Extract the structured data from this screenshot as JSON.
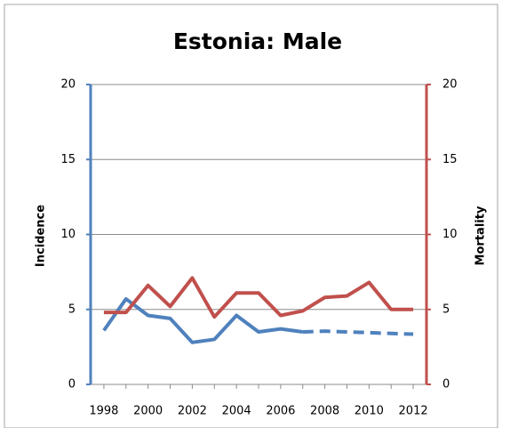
{
  "chart_data": {
    "type": "line",
    "title": "Estonia: Male",
    "y_label": "Incidence",
    "y2_label": "Mortality",
    "x": [
      1998,
      1999,
      2000,
      2001,
      2002,
      2003,
      2004,
      2005,
      2006,
      2007,
      2008,
      2009,
      2010,
      2011,
      2012
    ],
    "xlim": [
      1997.4,
      2012.6
    ],
    "xticks": [
      1998,
      2000,
      2002,
      2004,
      2006,
      2008,
      2010,
      2012
    ],
    "ylim": [
      0,
      20
    ],
    "yticks": [
      0,
      5,
      10,
      15,
      20
    ],
    "y2lim": [
      0,
      20
    ],
    "y2ticks": [
      0,
      5,
      10,
      15,
      20
    ],
    "grid": true,
    "series": [
      {
        "color": "#4f81bd",
        "axis": "y",
        "dashed": false,
        "values": [
          3.6,
          5.7,
          4.6,
          4.4,
          2.8,
          3.0,
          4.6,
          3.5,
          3.7,
          3.5,
          null,
          null,
          null,
          null,
          null
        ]
      },
      {
        "color": "#4f81bd",
        "axis": "y",
        "dashed": true,
        "values": [
          null,
          null,
          null,
          null,
          null,
          null,
          null,
          null,
          null,
          3.5,
          3.55,
          3.5,
          3.45,
          3.4,
          3.35
        ]
      },
      {
        "color": "#c0504d",
        "axis": "y2",
        "dashed": false,
        "values": [
          4.8,
          4.8,
          6.6,
          5.2,
          7.1,
          4.5,
          6.1,
          6.1,
          4.6,
          4.9,
          5.8,
          5.9,
          6.8,
          5.0,
          5.0
        ]
      }
    ]
  }
}
